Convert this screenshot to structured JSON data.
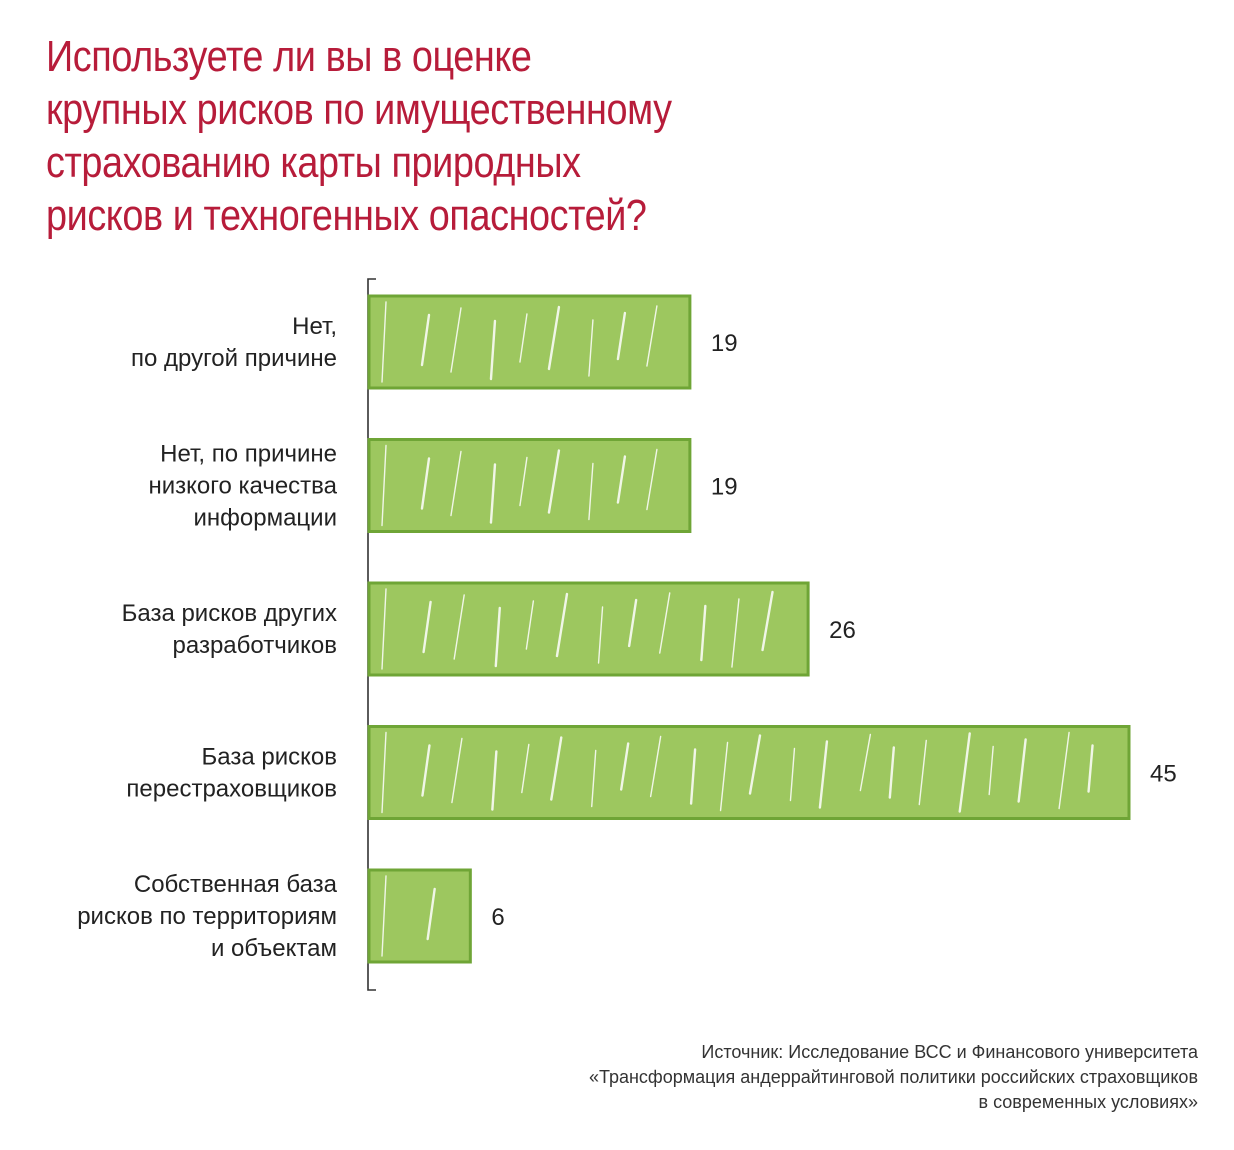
{
  "title_lines": [
    "Используете ли вы в оценке",
    "крупных рисков по имущественному",
    "страхованию карты природных",
    "рисков и техногенных опасностей?"
  ],
  "colors": {
    "title": "#b71c3a",
    "bar_fill": "#9dc75f",
    "bar_stroke": "#6fa536",
    "text": "#222222"
  },
  "chart_data": {
    "type": "bar",
    "orientation": "horizontal",
    "title": "Используете ли вы в оценке крупных рисков по имущественному страхованию карты природных рисков и техногенных опасностей?",
    "categories": [
      [
        "Нет,",
        "по другой причине"
      ],
      [
        "Нет, по причине",
        "низкого качества",
        "информации"
      ],
      [
        "База рисков других",
        "разработчиков"
      ],
      [
        "База рисков",
        "перестраховщиков"
      ],
      [
        "Собственная база",
        "рисков по территориям",
        "и объектам"
      ]
    ],
    "values": [
      19,
      19,
      26,
      45,
      6
    ],
    "xlim": [
      0,
      45
    ],
    "grid": false,
    "legend": "none"
  },
  "source_lines": [
    "Источник: Исследование ВСС и Финансового университета",
    "«Трансформация андеррайтинговой политики российских страховщиков",
    "в современных условиях»"
  ]
}
